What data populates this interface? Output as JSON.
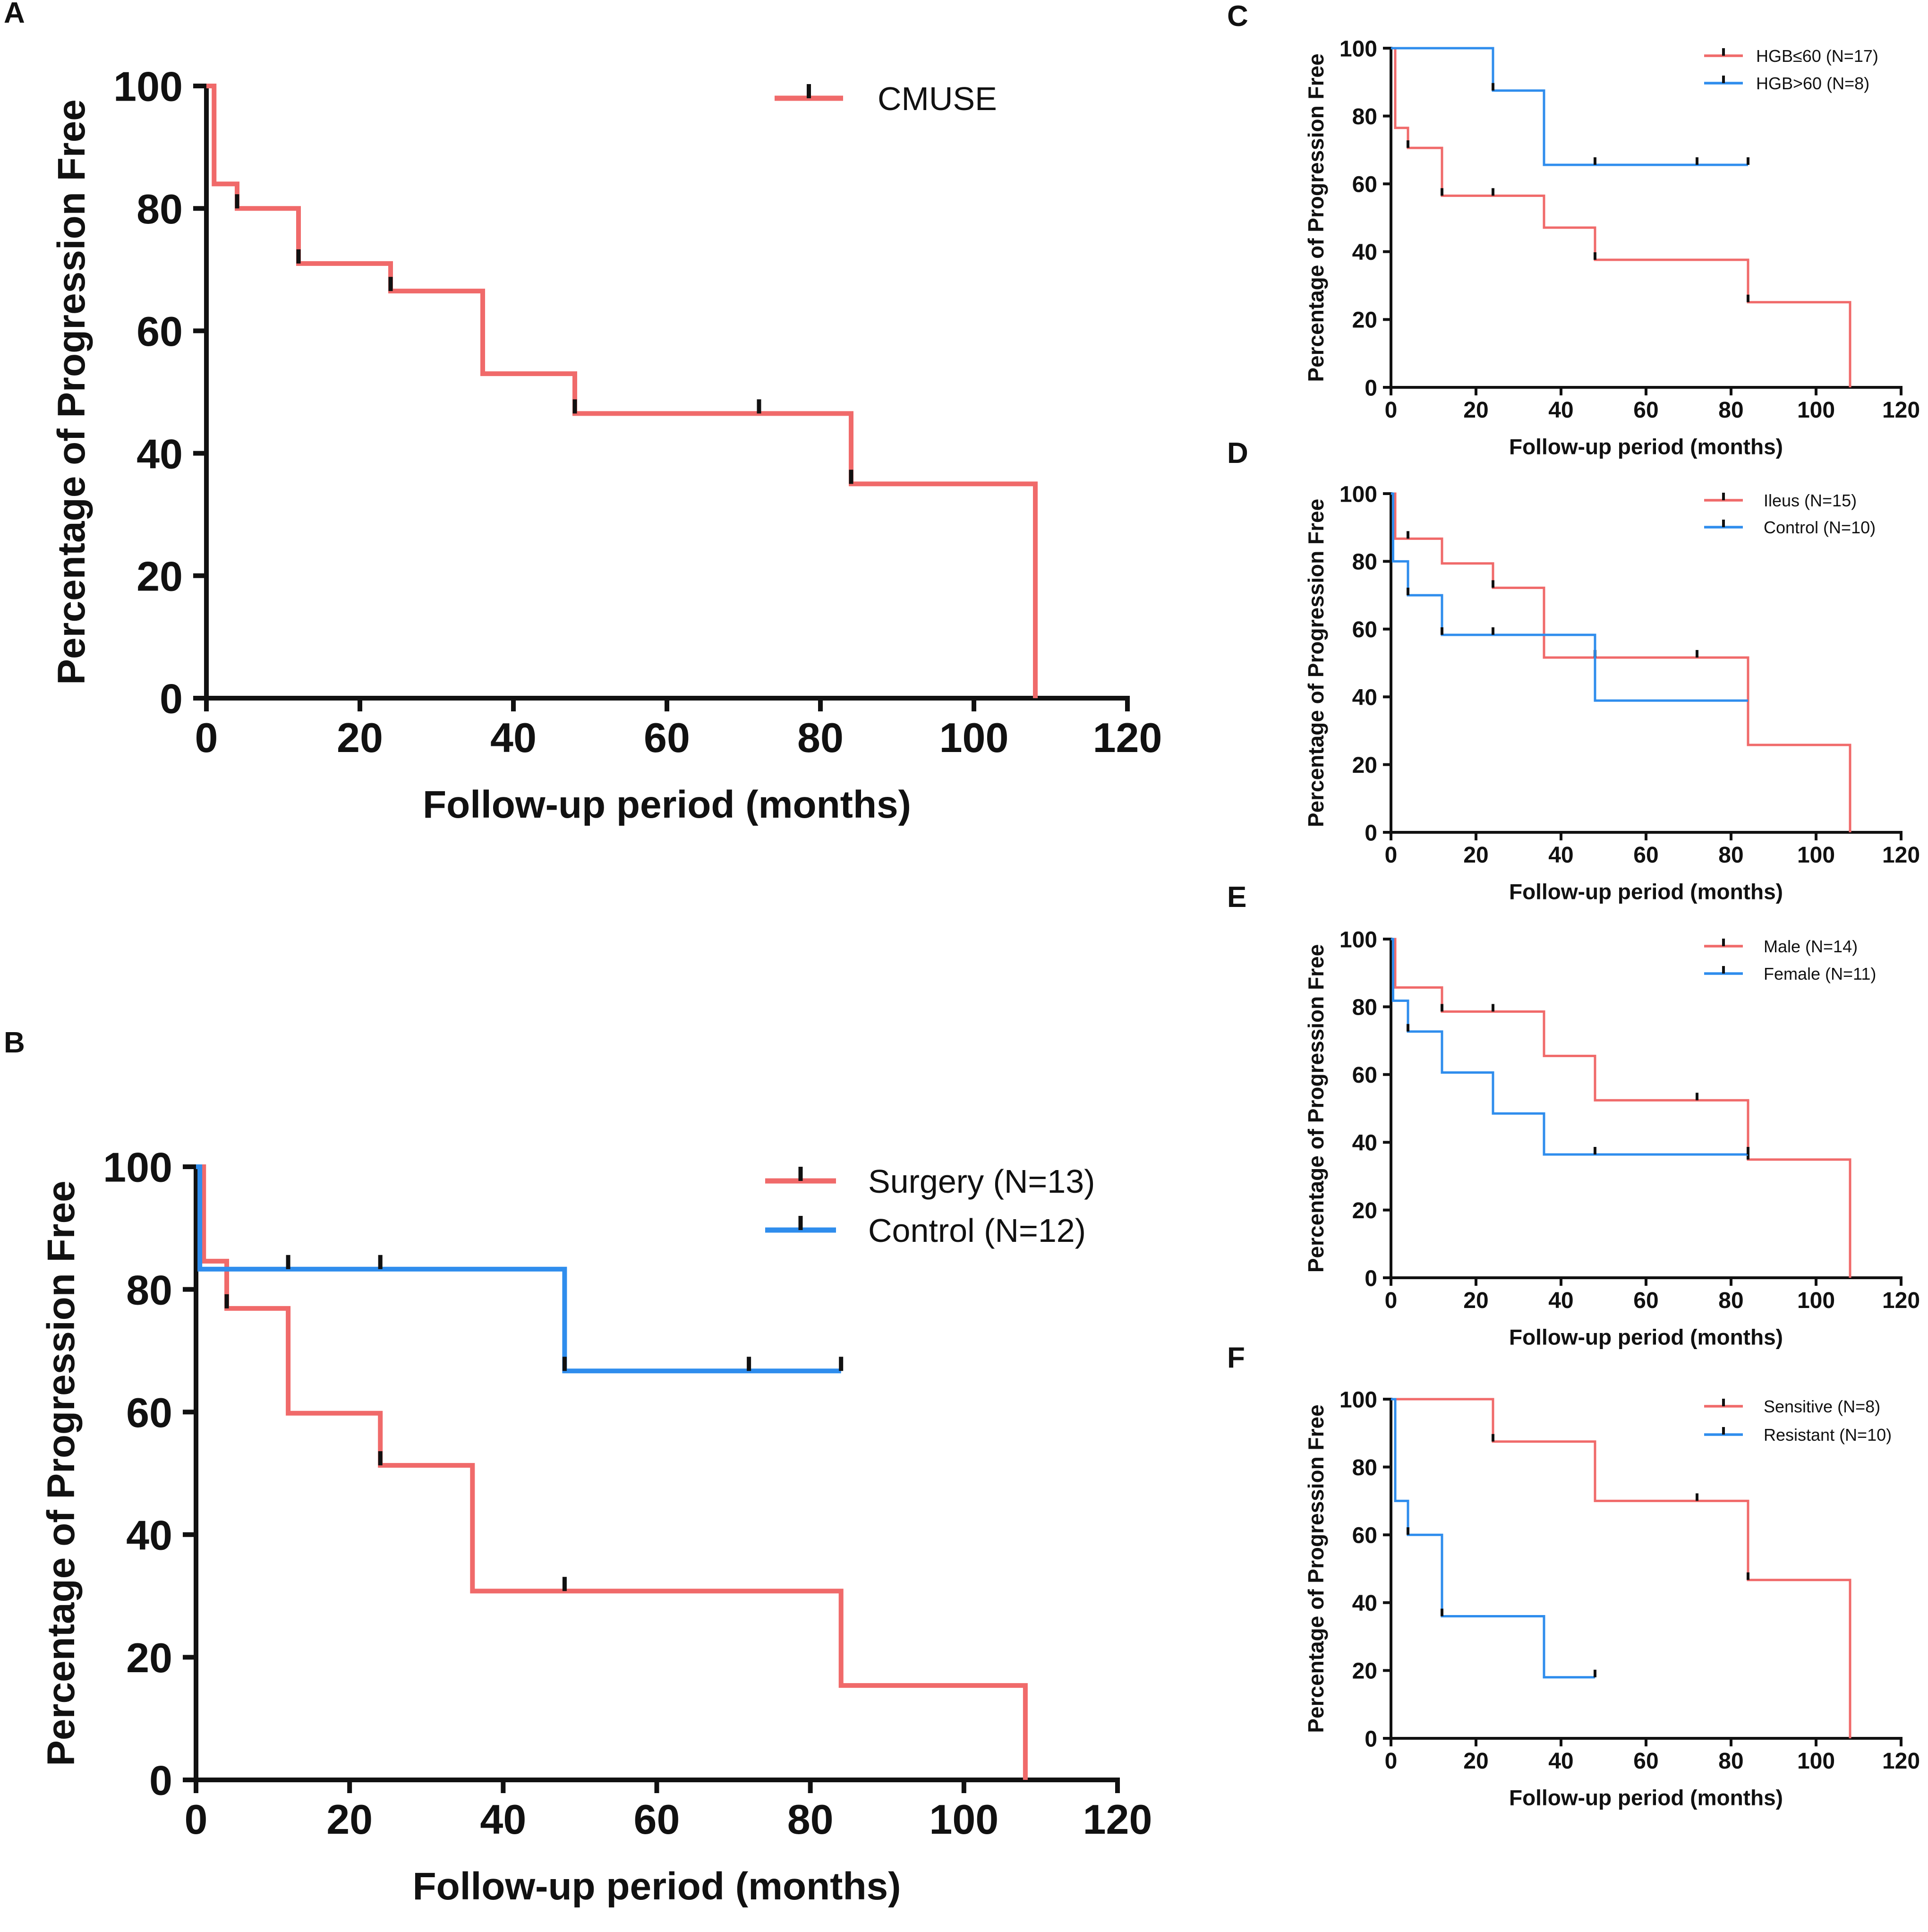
{
  "chart_data": [
    {
      "id": "A",
      "type": "line",
      "panel_label": "A",
      "title": "",
      "xlabel": "Follow-up period (months)",
      "ylabel": "Percentage of  Progression Free",
      "xlim": [
        0,
        120
      ],
      "ylim": [
        0,
        100
      ],
      "xticks": [
        0,
        20,
        40,
        60,
        80,
        100,
        120
      ],
      "yticks": [
        0,
        20,
        40,
        60,
        80,
        100
      ],
      "x_tick_labels": [
        "0",
        "20",
        "40",
        "60",
        "80",
        "100",
        "120"
      ],
      "y_tick_labels": [
        "0",
        "20",
        "40",
        "60",
        "80",
        "100"
      ],
      "legend_position": "top-right",
      "series": [
        {
          "name": "CMUSE",
          "color": "#f06a6a",
          "steps": [
            [
              0,
              100
            ],
            [
              1,
              84
            ],
            [
              4,
              80
            ],
            [
              12,
              71
            ],
            [
              24,
              66.5
            ],
            [
              36,
              53
            ],
            [
              48,
              46.5
            ],
            [
              84,
              35
            ],
            [
              108,
              0
            ]
          ],
          "censored": [
            [
              4,
              80
            ],
            [
              12,
              71
            ],
            [
              24,
              66.5
            ],
            [
              48,
              46.5
            ],
            [
              72,
              46.5
            ],
            [
              84,
              35
            ]
          ]
        }
      ]
    },
    {
      "id": "B",
      "type": "line",
      "panel_label": "B",
      "title": "",
      "xlabel": "Follow-up period (months)",
      "ylabel": "Percentage of  Progression Free",
      "xlim": [
        0,
        120
      ],
      "ylim": [
        0,
        100
      ],
      "xticks": [
        0,
        20,
        40,
        60,
        80,
        100,
        120
      ],
      "yticks": [
        0,
        20,
        40,
        60,
        80,
        100
      ],
      "x_tick_labels": [
        "0",
        "20",
        "40",
        "60",
        "80",
        "100",
        "120"
      ],
      "y_tick_labels": [
        "0",
        "20",
        "40",
        "60",
        "80",
        "100"
      ],
      "legend_position": "top-right",
      "series": [
        {
          "name": "Surgery (N=13)",
          "color": "#f06a6a",
          "steps": [
            [
              0,
              100
            ],
            [
              1,
              84.6
            ],
            [
              4,
              76.9
            ],
            [
              12,
              59.8
            ],
            [
              24,
              51.3
            ],
            [
              36,
              30.8
            ],
            [
              84,
              15.4
            ],
            [
              108,
              0
            ]
          ],
          "censored": [
            [
              4,
              76.9
            ],
            [
              24,
              51.3
            ],
            [
              48,
              30.8
            ]
          ]
        },
        {
          "name": "Control  (N=12)",
          "color": "#2f8ded",
          "steps": [
            [
              0,
              100
            ],
            [
              0.5,
              83.3
            ],
            [
              48,
              66.7
            ],
            [
              84,
              66.7
            ]
          ],
          "censored": [
            [
              12,
              83.3
            ],
            [
              24,
              83.3
            ],
            [
              48,
              66.7
            ],
            [
              72,
              66.7
            ],
            [
              84,
              66.7
            ]
          ]
        }
      ]
    },
    {
      "id": "C",
      "type": "line",
      "panel_label": "C",
      "title": "",
      "xlabel": "Follow-up period (months)",
      "ylabel": "Percentage of  Progression Free",
      "xlim": [
        0,
        120
      ],
      "ylim": [
        0,
        100
      ],
      "xticks": [
        0,
        20,
        40,
        60,
        80,
        100,
        120
      ],
      "yticks": [
        0,
        20,
        40,
        60,
        80,
        100
      ],
      "x_tick_labels": [
        "0",
        "20",
        "40",
        "60",
        "80",
        "100",
        "120"
      ],
      "y_tick_labels": [
        "0",
        "20",
        "40",
        "60",
        "80",
        "100"
      ],
      "legend_position": "top-right",
      "series": [
        {
          "name": "HGB≤60 (N=17)",
          "color": "#f06a6a",
          "steps": [
            [
              0,
              100
            ],
            [
              1,
              76.5
            ],
            [
              4,
              70.6
            ],
            [
              12,
              56.5
            ],
            [
              36,
              47.1
            ],
            [
              48,
              37.6
            ],
            [
              84,
              25.1
            ],
            [
              108,
              0
            ]
          ],
          "censored": [
            [
              4,
              70.6
            ],
            [
              12,
              56.5
            ],
            [
              24,
              56.5
            ],
            [
              48,
              37.6
            ],
            [
              84,
              25.1
            ]
          ]
        },
        {
          "name": "HGB>60 (N=8)",
          "color": "#2f8ded",
          "steps": [
            [
              0,
              100
            ],
            [
              24,
              87.5
            ],
            [
              36,
              65.6
            ],
            [
              84,
              65.6
            ]
          ],
          "censored": [
            [
              24,
              87.5
            ],
            [
              48,
              65.6
            ],
            [
              72,
              65.6
            ],
            [
              84,
              65.6
            ]
          ]
        }
      ]
    },
    {
      "id": "D",
      "type": "line",
      "panel_label": "D",
      "title": "",
      "xlabel": "Follow-up period (months)",
      "ylabel": "Percentage of  Progression Free",
      "xlim": [
        0,
        120
      ],
      "ylim": [
        0,
        100
      ],
      "xticks": [
        0,
        20,
        40,
        60,
        80,
        100,
        120
      ],
      "yticks": [
        0,
        20,
        40,
        60,
        80,
        100
      ],
      "x_tick_labels": [
        "0",
        "20",
        "40",
        "60",
        "80",
        "100",
        "120"
      ],
      "y_tick_labels": [
        "0",
        "20",
        "40",
        "60",
        "80",
        "100"
      ],
      "legend_position": "top-right",
      "series": [
        {
          "name": "Ileus (N=15)",
          "color": "#f06a6a",
          "steps": [
            [
              0,
              100
            ],
            [
              1,
              86.7
            ],
            [
              12,
              79.4
            ],
            [
              24,
              72.2
            ],
            [
              36,
              51.6
            ],
            [
              84,
              25.8
            ],
            [
              108,
              0
            ]
          ],
          "censored": [
            [
              4,
              86.7
            ],
            [
              24,
              72.2
            ],
            [
              48,
              51.6
            ],
            [
              72,
              51.6
            ]
          ]
        },
        {
          "name": "Control (N=10)",
          "color": "#2f8ded",
          "steps": [
            [
              0,
              100
            ],
            [
              0.5,
              80
            ],
            [
              4,
              70
            ],
            [
              12,
              58.3
            ],
            [
              48,
              38.9
            ],
            [
              84,
              38.9
            ]
          ],
          "censored": [
            [
              4,
              70
            ],
            [
              12,
              58.3
            ],
            [
              24,
              58.3
            ]
          ]
        }
      ]
    },
    {
      "id": "E",
      "type": "line",
      "panel_label": "E",
      "title": "",
      "xlabel": "Follow-up period (months)",
      "ylabel": "Percentage of  Progression Free",
      "xlim": [
        0,
        120
      ],
      "ylim": [
        0,
        100
      ],
      "xticks": [
        0,
        20,
        40,
        60,
        80,
        100,
        120
      ],
      "yticks": [
        0,
        20,
        40,
        60,
        80,
        100
      ],
      "x_tick_labels": [
        "0",
        "20",
        "40",
        "60",
        "80",
        "100",
        "120"
      ],
      "y_tick_labels": [
        "0",
        "20",
        "40",
        "60",
        "80",
        "100"
      ],
      "legend_position": "top-right",
      "series": [
        {
          "name": "Male (N=14)",
          "color": "#f06a6a",
          "steps": [
            [
              0,
              100
            ],
            [
              1,
              85.7
            ],
            [
              12,
              78.6
            ],
            [
              36,
              65.5
            ],
            [
              48,
              52.4
            ],
            [
              84,
              34.9
            ],
            [
              108,
              0
            ]
          ],
          "censored": [
            [
              12,
              78.6
            ],
            [
              24,
              78.6
            ],
            [
              72,
              52.4
            ],
            [
              84,
              34.9
            ]
          ]
        },
        {
          "name": "Female (N=11)",
          "color": "#2f8ded",
          "steps": [
            [
              0,
              100
            ],
            [
              0.5,
              81.8
            ],
            [
              4,
              72.7
            ],
            [
              12,
              60.6
            ],
            [
              24,
              48.5
            ],
            [
              36,
              36.4
            ],
            [
              84,
              36.4
            ]
          ],
          "censored": [
            [
              4,
              72.7
            ],
            [
              48,
              36.4
            ],
            [
              84,
              36.4
            ]
          ]
        }
      ]
    },
    {
      "id": "F",
      "type": "line",
      "panel_label": "F",
      "title": "",
      "xlabel": "Follow-up period (months)",
      "ylabel": "Percentage of  Progression Free",
      "xlim": [
        0,
        120
      ],
      "ylim": [
        0,
        100
      ],
      "xticks": [
        0,
        20,
        40,
        60,
        80,
        100,
        120
      ],
      "yticks": [
        0,
        20,
        40,
        60,
        80,
        100
      ],
      "x_tick_labels": [
        "0",
        "20",
        "40",
        "60",
        "80",
        "100",
        "120"
      ],
      "y_tick_labels": [
        "0",
        "20",
        "40",
        "60",
        "80",
        "100"
      ],
      "legend_position": "top-right",
      "series": [
        {
          "name": "Sensitive (N=8)",
          "color": "#f06a6a",
          "steps": [
            [
              0,
              100
            ],
            [
              24,
              87.5
            ],
            [
              48,
              70
            ],
            [
              84,
              46.7
            ],
            [
              108,
              0
            ]
          ],
          "censored": [
            [
              24,
              87.5
            ],
            [
              72,
              70
            ],
            [
              84,
              46.7
            ]
          ]
        },
        {
          "name": "Resistant (N=10)",
          "color": "#2f8ded",
          "steps": [
            [
              0,
              100
            ],
            [
              1,
              70
            ],
            [
              4,
              60
            ],
            [
              12,
              36
            ],
            [
              36,
              18
            ],
            [
              48,
              18
            ]
          ],
          "censored": [
            [
              4,
              60
            ],
            [
              12,
              36
            ],
            [
              48,
              18
            ]
          ]
        }
      ]
    }
  ]
}
